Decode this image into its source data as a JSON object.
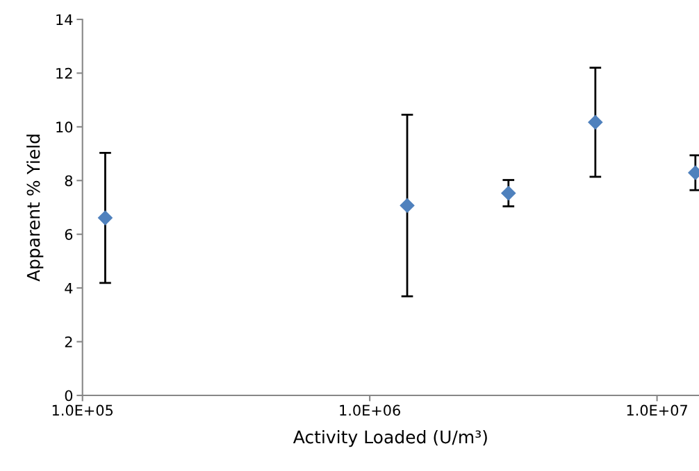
{
  "chart_data": {
    "type": "scatter",
    "xlabel": "Activity Loaded (U/m³)",
    "ylabel": "Apparent % Yield",
    "x": [
      120000,
      1350000,
      3040000,
      6100000,
      13600000
    ],
    "values": [
      6.61,
      7.07,
      7.53,
      10.17,
      8.29
    ],
    "errors": [
      2.42,
      3.38,
      0.49,
      2.03,
      0.65
    ],
    "color": "#4f81bd",
    "marker": "diamond",
    "log": "x",
    "grid": false,
    "legend": false,
    "xlim": [
      100000,
      14000000
    ],
    "xticks": [
      {
        "value": 100000,
        "label": "1.0E+05"
      },
      {
        "value": 1000000,
        "label": "1.0E+06"
      },
      {
        "value": 10000000,
        "label": "1.0E+07"
      }
    ],
    "ylim": [
      0,
      14
    ],
    "yticks": [
      0,
      2,
      4,
      6,
      8,
      10,
      12,
      14
    ]
  }
}
